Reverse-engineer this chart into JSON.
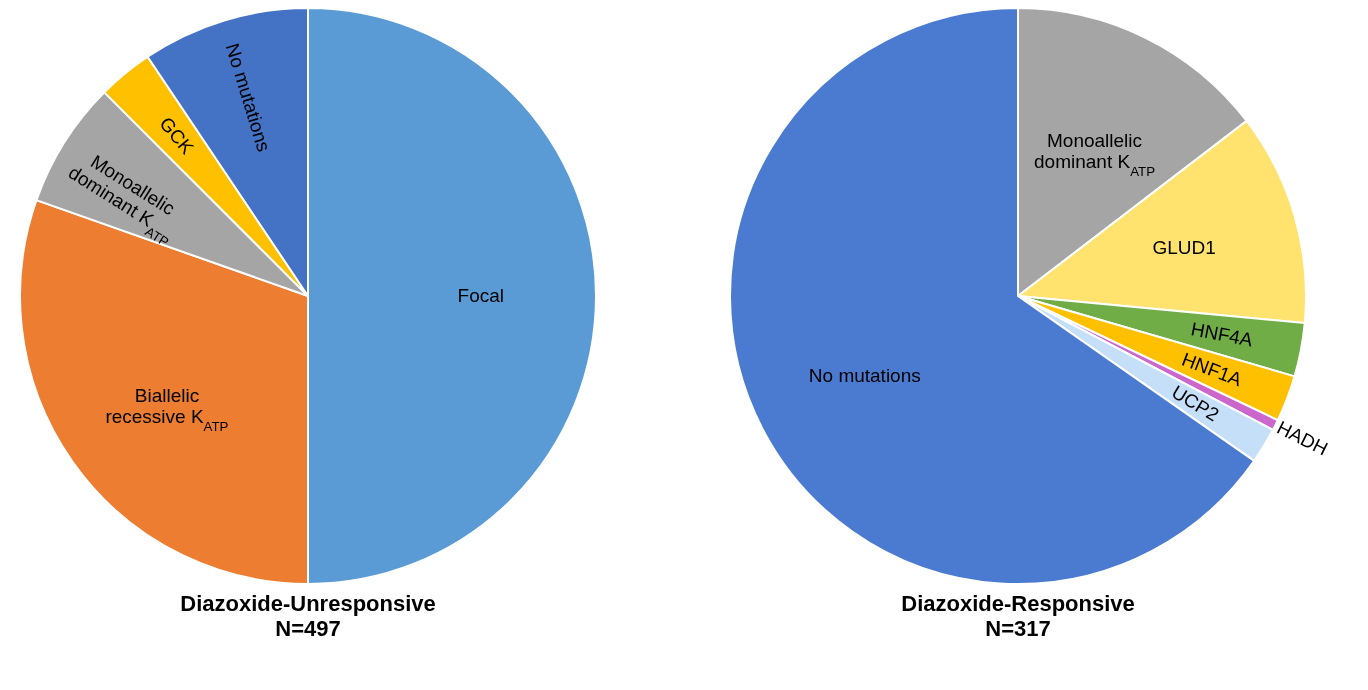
{
  "chart_data": [
    {
      "type": "pie",
      "title": "Diazoxide-Unresponsive",
      "subtitle": "N=497",
      "categories": [
        "Focal",
        "Biallelic\nrecessive K$_{ATP}$",
        "Monoallelic\ndominant K$_{ATP}$",
        "GCK",
        "No mutations"
      ],
      "values": [
        50,
        30.4,
        7.1,
        3.1,
        9.4
      ],
      "colors": [
        "#5b9bd5",
        "#ed7d31",
        "#a5a5a5",
        "#ffc000",
        "#4472c4"
      ]
    },
    {
      "type": "pie",
      "title": "Diazoxide-Responsive",
      "subtitle": "N=317",
      "categories": [
        "Monoallelic\ndominant K$_{ATP}$",
        "GLUD1",
        "HNF4A",
        "HNF1A",
        "HADH",
        "UCP2",
        "No mutations"
      ],
      "values": [
        14.6,
        11.9,
        3.0,
        2.6,
        0.6,
        2.0,
        65.3
      ],
      "colors": [
        "#a5a5a5",
        "#ffe36e",
        "#70ad47",
        "#ffc000",
        "#cc66cc",
        "#c5dff8",
        "#4a7bd0"
      ]
    }
  ]
}
